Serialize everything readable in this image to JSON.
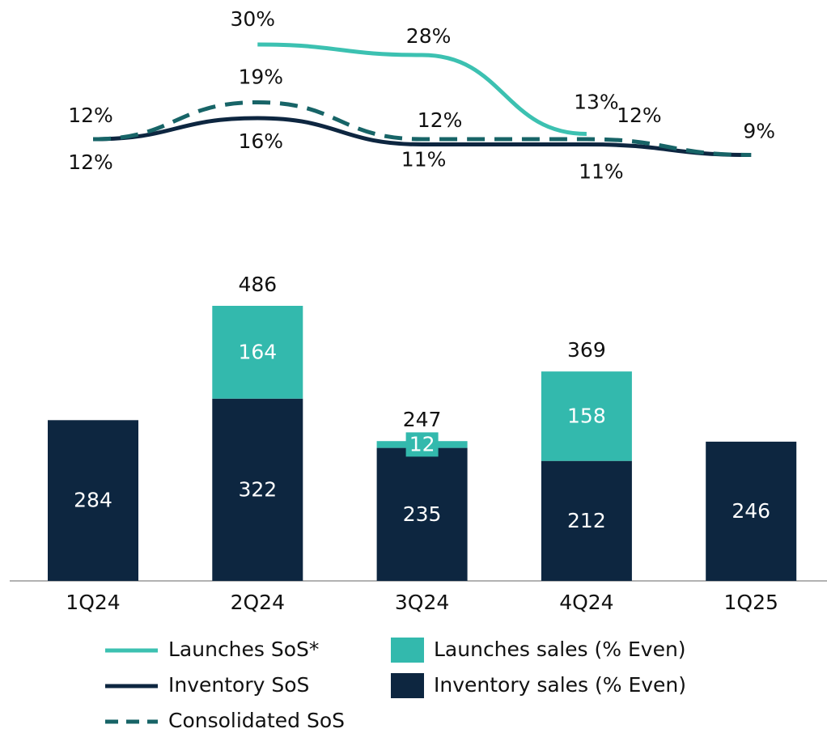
{
  "chart_data": {
    "type": "bar",
    "categories": [
      "1Q24",
      "2Q24",
      "3Q24",
      "4Q24",
      "1Q25"
    ],
    "series": [
      {
        "name": "Inventory sales (% Even)",
        "type": "bar",
        "color": "#0d2640",
        "values": [
          284,
          322,
          235,
          212,
          246
        ]
      },
      {
        "name": "Launches sales (% Even)",
        "type": "bar",
        "color": "#33b9ad",
        "values": [
          null,
          164,
          12,
          158,
          null
        ]
      },
      {
        "name": "Launches SoS*",
        "type": "line",
        "color": "#3cc1b1",
        "dashed": false,
        "values": [
          null,
          30,
          28,
          13,
          null
        ],
        "value_labels": [
          null,
          "30%",
          "28%",
          "13%",
          null
        ]
      },
      {
        "name": "Inventory SoS",
        "type": "line",
        "color": "#0d2640",
        "dashed": false,
        "values": [
          12,
          16,
          11,
          11,
          9
        ],
        "value_labels": [
          "12%",
          "16%",
          "11%",
          "11%",
          null
        ]
      },
      {
        "name": "Consolidated SoS",
        "type": "line",
        "color": "#176467",
        "dashed": true,
        "values": [
          12,
          19,
          12,
          12,
          9
        ],
        "value_labels": [
          "12%",
          "19%",
          "12%",
          "12%",
          "9%"
        ]
      }
    ],
    "totals": [
      null,
      486,
      247,
      369,
      null
    ]
  }
}
